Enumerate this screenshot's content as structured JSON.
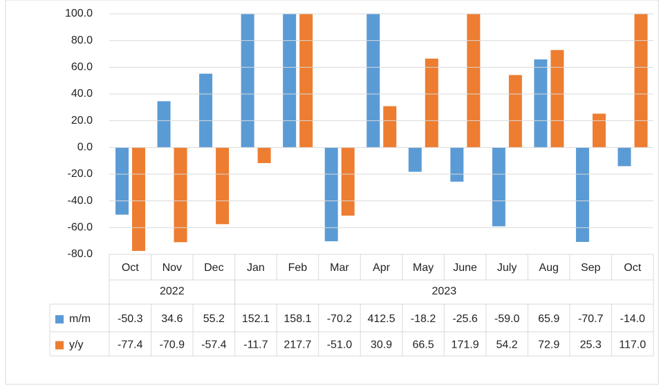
{
  "chart_data": {
    "type": "bar",
    "categories": [
      "Oct",
      "Nov",
      "Dec",
      "Jan",
      "Feb",
      "Mar",
      "Apr",
      "May",
      "June",
      "July",
      "Aug",
      "Sep",
      "Oct"
    ],
    "years": [
      "2022",
      "2022",
      "2022",
      "2023",
      "2023",
      "2023",
      "2023",
      "2023",
      "2023",
      "2023",
      "2023",
      "2023",
      "2023"
    ],
    "series": [
      {
        "name": "m/m",
        "color": "#5b9bd5",
        "values": [
          -50.3,
          34.6,
          55.2,
          152.1,
          158.1,
          -70.2,
          412.5,
          -18.2,
          -25.6,
          -59,
          65.9,
          -70.7,
          -14
        ],
        "value_labels": [
          "-50.3",
          "34.6",
          "55.2",
          "152.1",
          "158.1",
          "-70.2",
          "412.5",
          "-18.2",
          "-25.6",
          "-59.0",
          "65.9",
          "-70.7",
          "-14.0"
        ]
      },
      {
        "name": "y/y",
        "color": "#ed7d31",
        "values": [
          -77.4,
          -70.9,
          -57.4,
          -11.7,
          217.7,
          -51,
          30.9,
          66.5,
          171.9,
          54.2,
          72.9,
          25.3,
          117
        ],
        "value_labels": [
          "-77.4",
          "-70.9",
          "-57.4",
          "-11.7",
          "217.7",
          "-51.0",
          "30.9",
          "66.5",
          "171.9",
          "54.2",
          "72.9",
          "25.3",
          "117.0"
        ]
      }
    ],
    "ylim": [
      -80,
      100
    ],
    "yticks": [
      {
        "value": -80,
        "label": "-80.0"
      },
      {
        "value": -60,
        "label": "-60.0"
      },
      {
        "value": -40,
        "label": "-40.0"
      },
      {
        "value": -20,
        "label": "-20.0"
      },
      {
        "value": 0,
        "label": "0.0"
      },
      {
        "value": 20,
        "label": "20.0"
      },
      {
        "value": 40,
        "label": "40.0"
      },
      {
        "value": 60,
        "label": "60.0"
      },
      {
        "value": 80,
        "label": "80.0"
      },
      {
        "value": 100,
        "label": "100.0"
      }
    ],
    "grid": true
  }
}
